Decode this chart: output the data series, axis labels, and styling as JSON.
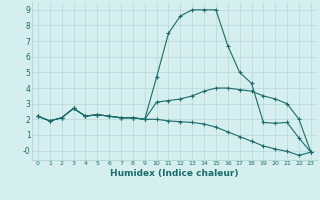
{
  "xlabel": "Humidex (Indice chaleur)",
  "bg_color": "#d5eeee",
  "line_color": "#1a6b6b",
  "grid_color": "#b8d8d8",
  "xlim": [
    -0.5,
    23.5
  ],
  "ylim": [
    -0.6,
    9.5
  ],
  "xticks": [
    0,
    1,
    2,
    3,
    4,
    5,
    6,
    7,
    8,
    9,
    10,
    11,
    12,
    13,
    14,
    15,
    16,
    17,
    18,
    19,
    20,
    21,
    22,
    23
  ],
  "yticks": [
    0,
    1,
    2,
    3,
    4,
    5,
    6,
    7,
    8,
    9
  ],
  "ytick_labels": [
    "-0",
    "1",
    "2",
    "3",
    "4",
    "5",
    "6",
    "7",
    "8",
    "9"
  ],
  "series": [
    {
      "x": [
        0,
        1,
        2,
        3,
        4,
        5,
        6,
        7,
        8,
        9,
        10,
        11,
        12,
        13,
        14,
        15,
        16,
        17,
        18,
        19,
        20,
        21,
        22,
        23
      ],
      "y": [
        2.2,
        1.9,
        2.1,
        2.7,
        2.2,
        2.3,
        2.2,
        2.1,
        2.1,
        2.0,
        4.7,
        7.5,
        8.6,
        9.0,
        9.0,
        9.0,
        6.7,
        5.0,
        4.3,
        1.8,
        1.75,
        1.8,
        0.8,
        -0.1
      ]
    },
    {
      "x": [
        0,
        1,
        2,
        3,
        4,
        5,
        6,
        7,
        8,
        9,
        10,
        11,
        12,
        13,
        14,
        15,
        16,
        17,
        18,
        19,
        20,
        21,
        22,
        23
      ],
      "y": [
        2.2,
        1.9,
        2.1,
        2.7,
        2.2,
        2.3,
        2.2,
        2.1,
        2.1,
        2.0,
        3.1,
        3.2,
        3.3,
        3.5,
        3.8,
        4.0,
        4.0,
        3.9,
        3.8,
        3.5,
        3.3,
        3.0,
        2.0,
        -0.1
      ]
    },
    {
      "x": [
        0,
        1,
        2,
        3,
        4,
        5,
        6,
        7,
        8,
        9,
        10,
        11,
        12,
        13,
        14,
        15,
        16,
        17,
        18,
        19,
        20,
        21,
        22,
        23
      ],
      "y": [
        2.2,
        1.9,
        2.1,
        2.7,
        2.2,
        2.3,
        2.2,
        2.1,
        2.1,
        2.0,
        2.0,
        1.9,
        1.85,
        1.8,
        1.7,
        1.5,
        1.2,
        0.9,
        0.6,
        0.3,
        0.1,
        -0.05,
        -0.3,
        -0.1
      ]
    }
  ]
}
